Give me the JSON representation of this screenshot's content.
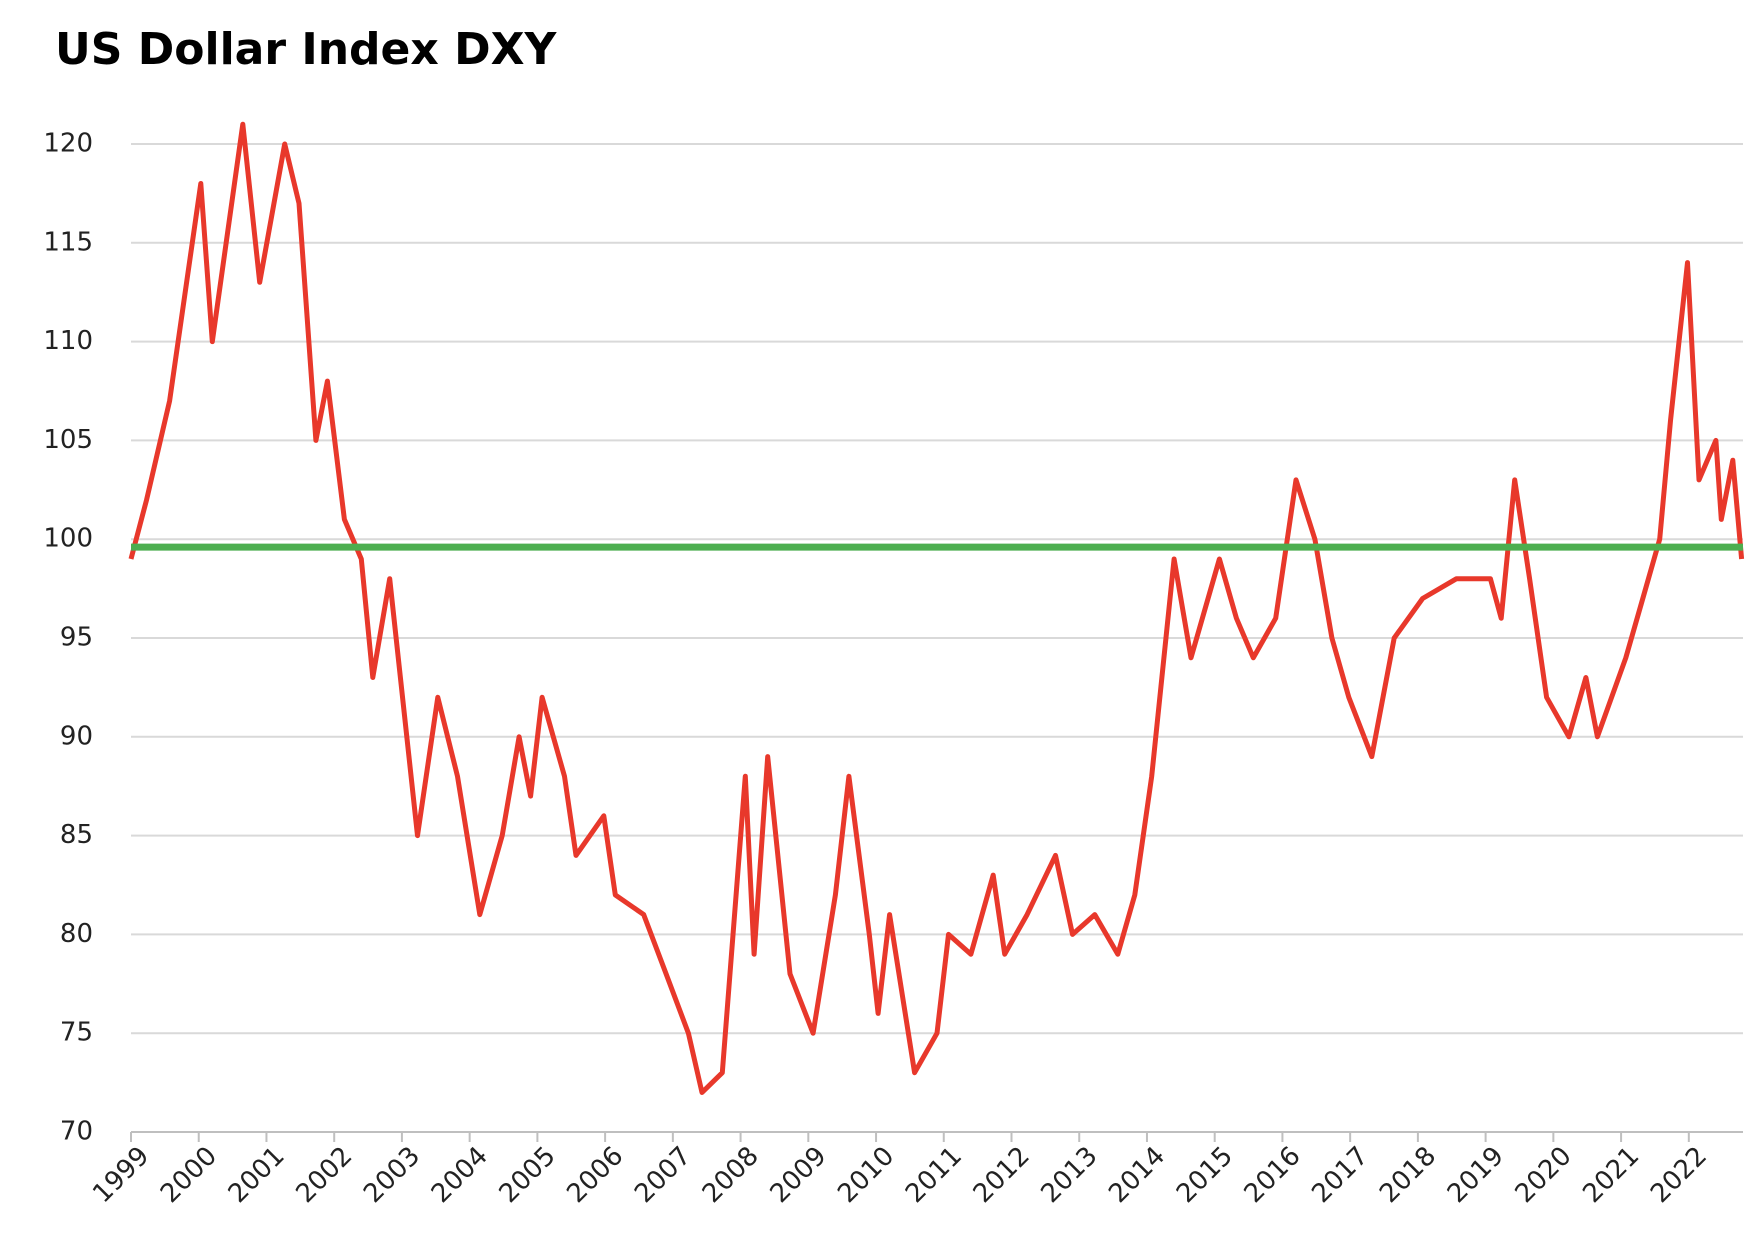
{
  "chart_data": {
    "type": "line",
    "title": "US Dollar Index DXY",
    "x": [
      1999.0,
      1999.23,
      1999.57,
      2000.03,
      2000.2,
      2000.65,
      2000.9,
      2001.27,
      2001.48,
      2001.73,
      2001.9,
      2002.15,
      2002.4,
      2002.57,
      2002.82,
      2003.23,
      2003.53,
      2003.82,
      2004.15,
      2004.48,
      2004.73,
      2004.9,
      2005.07,
      2005.4,
      2005.57,
      2005.98,
      2006.15,
      2006.57,
      2006.9,
      2007.23,
      2007.43,
      2007.73,
      2008.07,
      2008.2,
      2008.4,
      2008.73,
      2009.07,
      2009.4,
      2009.6,
      2009.9,
      2010.03,
      2010.2,
      2010.57,
      2010.9,
      2011.07,
      2011.4,
      2011.73,
      2011.9,
      2012.23,
      2012.65,
      2012.9,
      2013.23,
      2013.57,
      2013.82,
      2014.07,
      2014.4,
      2014.65,
      2015.07,
      2015.32,
      2015.57,
      2015.9,
      2016.2,
      2016.48,
      2016.73,
      2016.98,
      2017.32,
      2017.65,
      2018.07,
      2018.57,
      2019.07,
      2019.23,
      2019.43,
      2019.65,
      2019.9,
      2020.23,
      2020.48,
      2020.65,
      2021.07,
      2021.32,
      2021.57,
      2021.73,
      2021.98,
      2022.15,
      2022.4,
      2022.48,
      2022.65,
      2022.78
    ],
    "values": [
      99,
      102,
      107,
      118,
      110,
      121,
      113,
      120,
      117,
      105,
      108,
      101,
      99,
      93,
      98,
      85,
      92,
      88,
      81,
      85,
      90,
      87,
      92,
      88,
      84,
      86,
      82,
      81,
      78,
      75,
      72,
      73,
      88,
      79,
      89,
      78,
      75,
      82,
      88,
      80,
      76,
      81,
      73,
      75,
      80,
      79,
      83,
      79,
      81,
      84,
      80,
      81,
      79,
      82,
      88,
      99,
      94,
      99,
      96,
      94,
      96,
      103,
      100,
      95,
      92,
      89,
      95,
      97,
      98,
      98,
      96,
      103,
      98,
      92,
      90,
      93,
      90,
      94,
      97,
      100,
      106,
      114,
      103,
      105,
      101,
      104,
      99
    ],
    "color": "#e8382b",
    "reference_line": {
      "value": 99.6,
      "color": "#4cae4f"
    },
    "xlim": [
      1999,
      2022.8
    ],
    "xticks": [
      1999,
      2000,
      2001,
      2002,
      2003,
      2004,
      2005,
      2006,
      2007,
      2008,
      2009,
      2010,
      2011,
      2012,
      2013,
      2014,
      2015,
      2016,
      2017,
      2018,
      2019,
      2020,
      2021,
      2022
    ],
    "ylim": [
      70,
      120
    ],
    "yticks": [
      70,
      75,
      80,
      85,
      90,
      95,
      100,
      105,
      110,
      115,
      120
    ],
    "grid": true
  }
}
